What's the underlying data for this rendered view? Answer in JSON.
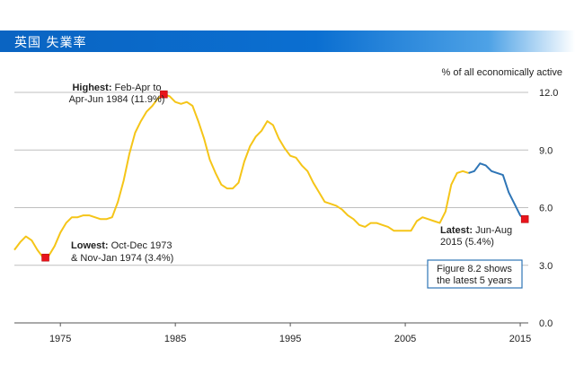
{
  "header": {
    "title": "英国  失業率"
  },
  "chart_data": {
    "type": "line",
    "title": "英国  失業率",
    "ylabel": "% of all economically active",
    "xlabel": "",
    "xlim": [
      1971,
      2015.7
    ],
    "ylim": [
      0,
      12
    ],
    "y_ticks": [
      "0.0",
      "3.0",
      "6.0",
      "9.0",
      "12.0"
    ],
    "x_ticks": [
      "1975",
      "1985",
      "1995",
      "2005",
      "2015"
    ],
    "grid": "horizontal",
    "series": [
      {
        "color": "#f5c518",
        "points": [
          [
            1971.0,
            3.8
          ],
          [
            1971.5,
            4.2
          ],
          [
            1972.0,
            4.5
          ],
          [
            1972.5,
            4.3
          ],
          [
            1973.0,
            3.8
          ],
          [
            1973.5,
            3.4
          ],
          [
            1974.0,
            3.5
          ],
          [
            1974.5,
            4.0
          ],
          [
            1975.0,
            4.7
          ],
          [
            1975.5,
            5.2
          ],
          [
            1976.0,
            5.5
          ],
          [
            1976.5,
            5.5
          ],
          [
            1977.0,
            5.6
          ],
          [
            1977.5,
            5.6
          ],
          [
            1978.0,
            5.5
          ],
          [
            1978.5,
            5.4
          ],
          [
            1979.0,
            5.4
          ],
          [
            1979.5,
            5.5
          ],
          [
            1980.0,
            6.3
          ],
          [
            1980.5,
            7.4
          ],
          [
            1981.0,
            8.8
          ],
          [
            1981.5,
            9.9
          ],
          [
            1982.0,
            10.5
          ],
          [
            1982.5,
            11.0
          ],
          [
            1983.0,
            11.3
          ],
          [
            1983.5,
            11.7
          ],
          [
            1984.0,
            11.9
          ],
          [
            1984.5,
            11.8
          ],
          [
            1985.0,
            11.5
          ],
          [
            1985.5,
            11.4
          ],
          [
            1986.0,
            11.5
          ],
          [
            1986.5,
            11.3
          ],
          [
            1987.0,
            10.5
          ],
          [
            1987.5,
            9.6
          ],
          [
            1988.0,
            8.5
          ],
          [
            1988.5,
            7.8
          ],
          [
            1989.0,
            7.2
          ],
          [
            1989.5,
            7.0
          ],
          [
            1990.0,
            7.0
          ],
          [
            1990.5,
            7.3
          ],
          [
            1991.0,
            8.4
          ],
          [
            1991.5,
            9.2
          ],
          [
            1992.0,
            9.7
          ],
          [
            1992.5,
            10.0
          ],
          [
            1993.0,
            10.5
          ],
          [
            1993.5,
            10.3
          ],
          [
            1994.0,
            9.6
          ],
          [
            1994.5,
            9.1
          ],
          [
            1995.0,
            8.7
          ],
          [
            1995.5,
            8.6
          ],
          [
            1996.0,
            8.2
          ],
          [
            1996.5,
            7.9
          ],
          [
            1997.0,
            7.3
          ],
          [
            1997.5,
            6.8
          ],
          [
            1998.0,
            6.3
          ],
          [
            1998.5,
            6.2
          ],
          [
            1999.0,
            6.1
          ],
          [
            1999.5,
            5.9
          ],
          [
            2000.0,
            5.6
          ],
          [
            2000.5,
            5.4
          ],
          [
            2001.0,
            5.1
          ],
          [
            2001.5,
            5.0
          ],
          [
            2002.0,
            5.2
          ],
          [
            2002.5,
            5.2
          ],
          [
            2003.0,
            5.1
          ],
          [
            2003.5,
            5.0
          ],
          [
            2004.0,
            4.8
          ],
          [
            2004.5,
            4.8
          ],
          [
            2005.0,
            4.8
          ],
          [
            2005.5,
            4.8
          ],
          [
            2006.0,
            5.3
          ],
          [
            2006.5,
            5.5
          ],
          [
            2007.0,
            5.4
          ],
          [
            2007.5,
            5.3
          ],
          [
            2008.0,
            5.2
          ],
          [
            2008.5,
            5.8
          ],
          [
            2009.0,
            7.2
          ],
          [
            2009.5,
            7.8
          ],
          [
            2010.0,
            7.9
          ],
          [
            2010.5,
            7.8
          ]
        ]
      },
      {
        "color": "#2e75b6",
        "points": [
          [
            2010.5,
            7.8
          ],
          [
            2011.0,
            7.9
          ],
          [
            2011.5,
            8.3
          ],
          [
            2012.0,
            8.2
          ],
          [
            2012.5,
            7.9
          ],
          [
            2013.0,
            7.8
          ],
          [
            2013.5,
            7.7
          ],
          [
            2014.0,
            6.8
          ],
          [
            2014.5,
            6.2
          ],
          [
            2015.0,
            5.6
          ],
          [
            2015.4,
            5.4
          ]
        ]
      }
    ],
    "markers": [
      {
        "x": 1973.7,
        "y": 3.4,
        "color": "#e8141c"
      },
      {
        "x": 1984.0,
        "y": 11.9,
        "color": "#e8141c"
      },
      {
        "x": 2015.4,
        "y": 5.4,
        "color": "#e8141c"
      }
    ],
    "annotations": {
      "highest_bold": "Highest:",
      "highest_rest": " Feb-Apr to",
      "highest_line2": "Apr-Jun 1984 (11.9%)",
      "lowest_bold": "Lowest:",
      "lowest_rest": " Oct-Dec 1973",
      "lowest_line2": "& Nov-Jan 1974 (3.4%)",
      "latest_bold": "Latest:",
      "latest_rest": " Jun-Aug",
      "latest_line2": "2015 (5.4%)",
      "figure_line1": "Figure 8.2 shows",
      "figure_line2": "the latest 5 years"
    }
  }
}
